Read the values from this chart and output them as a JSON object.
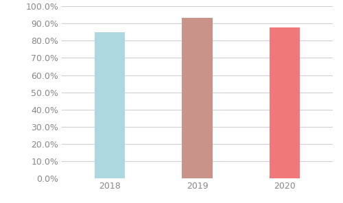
{
  "categories": [
    "2018",
    "2019",
    "2020"
  ],
  "values": [
    0.85,
    0.933,
    0.878
  ],
  "bar_colors": [
    "#add8e0",
    "#c9938a",
    "#f07878"
  ],
  "ylim": [
    0.0,
    1.0
  ],
  "yticks": [
    0.0,
    0.1,
    0.2,
    0.3,
    0.4,
    0.5,
    0.6,
    0.7,
    0.8,
    0.9,
    1.0
  ],
  "background_color": "#ffffff",
  "grid_color": "#d0d0d0",
  "tick_label_fontsize": 9,
  "tick_label_color": "#888888",
  "bar_width": 0.35
}
